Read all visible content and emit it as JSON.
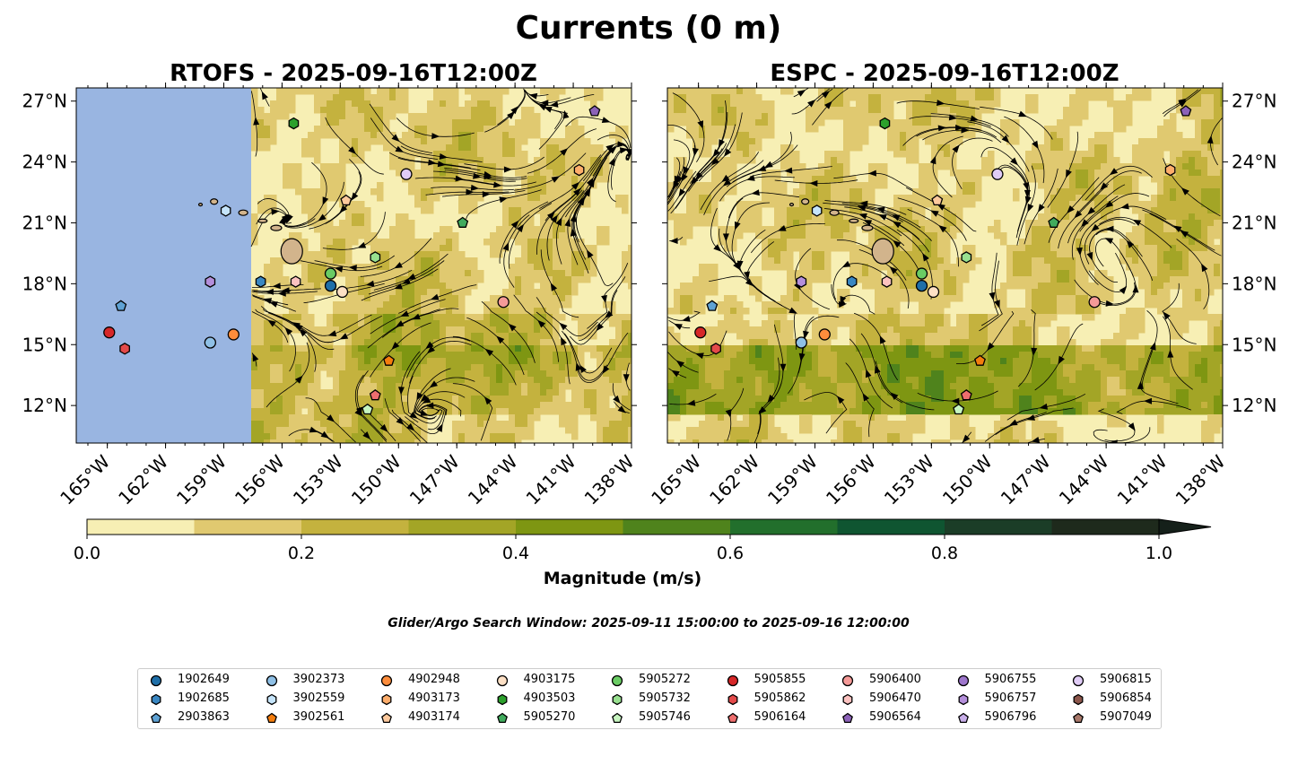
{
  "figure_title": "Currents (0 m)",
  "panels": [
    {
      "title": "RTOFS - 2025-09-16T12:00Z",
      "model": "RTOFS"
    },
    {
      "title": "ESPC - 2025-09-16T12:00Z",
      "model": "ESPC"
    }
  ],
  "lat_ticks": [
    {
      "value": 27,
      "label": "27°N"
    },
    {
      "value": 24,
      "label": "24°N"
    },
    {
      "value": 21,
      "label": "21°N"
    },
    {
      "value": 18,
      "label": "18°N"
    },
    {
      "value": 15,
      "label": "15°N"
    },
    {
      "value": 12,
      "label": "12°N"
    }
  ],
  "lon_ticks": [
    {
      "value": -165,
      "label": "165°W"
    },
    {
      "value": -162,
      "label": "162°W"
    },
    {
      "value": -159,
      "label": "159°W"
    },
    {
      "value": -156,
      "label": "156°W"
    },
    {
      "value": -153,
      "label": "153°W"
    },
    {
      "value": -150,
      "label": "150°W"
    },
    {
      "value": -147,
      "label": "147°W"
    },
    {
      "value": -144,
      "label": "144°W"
    },
    {
      "value": -141,
      "label": "141°W"
    },
    {
      "value": -138,
      "label": "138°W"
    }
  ],
  "map_extent": {
    "lon": [
      -166.6,
      -138
    ],
    "lat": [
      10.15,
      27.65
    ]
  },
  "colorbar": {
    "label": "Magnitude (m/s)",
    "range": [
      0,
      1
    ],
    "extend": "max",
    "ticks": [
      {
        "value": 0,
        "label": "0.0"
      },
      {
        "value": 0.2,
        "label": "0.2"
      },
      {
        "value": 0.4,
        "label": "0.4"
      },
      {
        "value": 0.6,
        "label": "0.6"
      },
      {
        "value": 0.8,
        "label": "0.8"
      },
      {
        "value": 1.0,
        "label": "1.0"
      }
    ],
    "colors": [
      "#f7efb4",
      "#e0c970",
      "#c4b23e",
      "#a3a526",
      "#7e9612",
      "#4f831c",
      "#226f2c",
      "#0f5531",
      "#1b3d27",
      "#1e2a1c"
    ],
    "over_color": "#15201a"
  },
  "land_color": "#d2b48c",
  "nodata_color": "#99b5e1",
  "search_window": "Glider/Argo Search Window: 2025-09-11 15:00:00 to 2025-09-16 12:00:00",
  "floats": [
    {
      "id": "1902649",
      "marker": "circle",
      "color": "#1f6fa8",
      "lon": -153.5,
      "lat": 17.9
    },
    {
      "id": "1902685",
      "marker": "hexagon",
      "color": "#3a87c2",
      "lon": -157.1,
      "lat": 18.1
    },
    {
      "id": "2903863",
      "marker": "pentagon",
      "color": "#5fa2d4",
      "lon": -164.3,
      "lat": 16.9
    },
    {
      "id": "3902373",
      "marker": "circle",
      "color": "#8fc0e6",
      "lon": -159.7,
      "lat": 15.1
    },
    {
      "id": "3902559",
      "marker": "hexagon",
      "color": "#c5e4fa",
      "lon": -158.9,
      "lat": 21.6
    },
    {
      "id": "3902561",
      "marker": "pentagon",
      "color": "#f47d0e",
      "lon": -150.5,
      "lat": 14.2
    },
    {
      "id": "4902948",
      "marker": "circle",
      "color": "#fd8d3c",
      "lon": -158.5,
      "lat": 15.5
    },
    {
      "id": "4903173",
      "marker": "hexagon",
      "color": "#fdad6b",
      "lon": -140.7,
      "lat": 23.6
    },
    {
      "id": "4903174",
      "marker": "pentagon",
      "color": "#fdc99d",
      "lon": -152.7,
      "lat": 22.1
    },
    {
      "id": "4903175",
      "marker": "circle",
      "color": "#fde0c5",
      "lon": -152.9,
      "lat": 17.6
    },
    {
      "id": "4903503",
      "marker": "hexagon",
      "color": "#2ca02c",
      "lon": -155.4,
      "lat": 25.9
    },
    {
      "id": "5905270",
      "marker": "pentagon",
      "color": "#41ab5d",
      "lon": -146.7,
      "lat": 21.0
    },
    {
      "id": "5905272",
      "marker": "circle",
      "color": "#6acc64",
      "lon": -153.5,
      "lat": 18.5
    },
    {
      "id": "5905732",
      "marker": "hexagon",
      "color": "#98e08f",
      "lon": -151.2,
      "lat": 19.3
    },
    {
      "id": "5905746",
      "marker": "pentagon",
      "color": "#c7f5c0",
      "lon": -151.6,
      "lat": 11.8
    },
    {
      "id": "5905855",
      "marker": "circle",
      "color": "#d62728",
      "lon": -164.9,
      "lat": 15.6
    },
    {
      "id": "5905862",
      "marker": "hexagon",
      "color": "#e34a4a",
      "lon": -164.1,
      "lat": 14.8
    },
    {
      "id": "5906164",
      "marker": "pentagon",
      "color": "#ee6e6e",
      "lon": -151.2,
      "lat": 12.5
    },
    {
      "id": "5906400",
      "marker": "circle",
      "color": "#f59a98",
      "lon": -144.6,
      "lat": 17.1
    },
    {
      "id": "5906470",
      "marker": "hexagon",
      "color": "#fcc2c0",
      "lon": -155.3,
      "lat": 18.1
    },
    {
      "id": "5906564",
      "marker": "pentagon",
      "color": "#8c62b8",
      "lon": -139.9,
      "lat": 26.5
    },
    {
      "id": "5906755",
      "marker": "circle",
      "color": "#9e76cc",
      "lon": null,
      "lat": null
    },
    {
      "id": "5906757",
      "marker": "hexagon",
      "color": "#b48fdb",
      "lon": -159.7,
      "lat": 18.1
    },
    {
      "id": "5906796",
      "marker": "pentagon",
      "color": "#c8aee9",
      "lon": null,
      "lat": null
    },
    {
      "id": "5906815",
      "marker": "circle",
      "color": "#e0ccf6",
      "lon": -149.6,
      "lat": 23.4
    },
    {
      "id": "5906854",
      "marker": "hexagon",
      "color": "#8c564b",
      "lon": null,
      "lat": null
    },
    {
      "id": "5907049",
      "marker": "pentagon",
      "color": "#a8786a",
      "lon": null,
      "lat": null
    }
  ]
}
